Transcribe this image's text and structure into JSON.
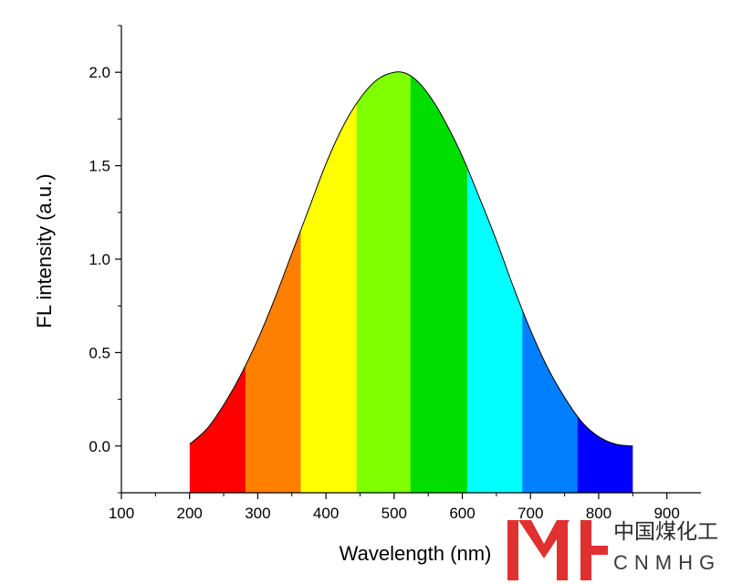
{
  "chart_data": {
    "type": "area",
    "title": "",
    "xlabel": "Wavelength (nm)",
    "ylabel": "FL intensity (a.u.)",
    "xlim": [
      100,
      950
    ],
    "ylim": [
      -0.25,
      2.25
    ],
    "xticks": [
      100,
      200,
      300,
      400,
      500,
      600,
      700,
      800,
      900
    ],
    "xtick_labels": [
      "100",
      "200",
      "300",
      "400",
      "500",
      "600",
      "700",
      "800",
      "900"
    ],
    "yticks": [
      0.0,
      0.5,
      1.0,
      1.5,
      2.0
    ],
    "ytick_labels": [
      "0.0",
      "0.5",
      "1.0",
      "1.5",
      "2.0"
    ],
    "grid": false,
    "legend": "none",
    "curve": {
      "x": [
        200,
        225,
        250,
        275,
        300,
        325,
        350,
        375,
        400,
        425,
        450,
        475,
        500,
        520,
        540,
        560,
        580,
        600,
        625,
        650,
        675,
        700,
        725,
        750,
        775,
        800,
        825,
        850
      ],
      "y": [
        0.01,
        0.09,
        0.22,
        0.38,
        0.57,
        0.79,
        1.03,
        1.27,
        1.51,
        1.71,
        1.86,
        1.96,
        2.0,
        1.99,
        1.93,
        1.83,
        1.7,
        1.55,
        1.33,
        1.1,
        0.85,
        0.62,
        0.42,
        0.26,
        0.13,
        0.05,
        0.01,
        0.0
      ]
    },
    "bands": [
      {
        "x0": 200,
        "x1": 282,
        "color": "#ff0000"
      },
      {
        "x0": 282,
        "x1": 363,
        "color": "#ff7f00"
      },
      {
        "x0": 363,
        "x1": 445,
        "color": "#ffff00"
      },
      {
        "x0": 445,
        "x1": 524,
        "color": "#80ff00"
      },
      {
        "x0": 524,
        "x1": 607,
        "color": "#00dd00"
      },
      {
        "x0": 607,
        "x1": 688,
        "color": "#00ffff"
      },
      {
        "x0": 688,
        "x1": 769,
        "color": "#0080ff"
      },
      {
        "x0": 769,
        "x1": 850,
        "color": "#0000ff"
      }
    ]
  },
  "watermark": {
    "chinese": "中国煤化工",
    "english": "CNMHG",
    "color": "#e03030"
  }
}
